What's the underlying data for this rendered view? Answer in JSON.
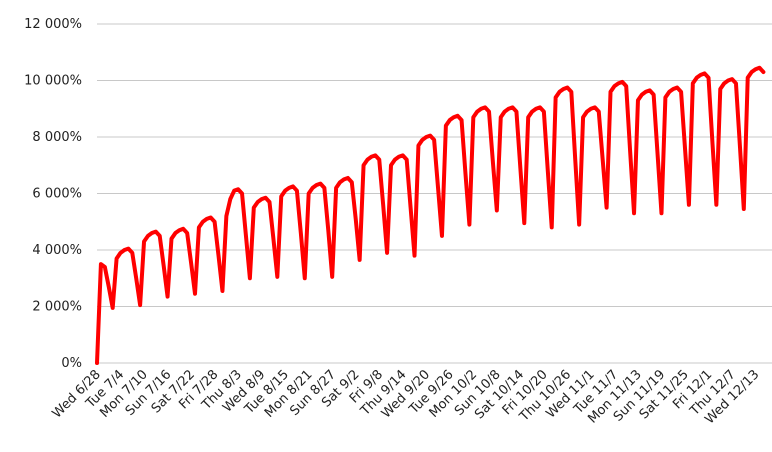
{
  "chart_data": {
    "type": "line",
    "color": "#ff0000",
    "grid": true,
    "ylim": [
      0,
      12000
    ],
    "yticks": [
      {
        "value": 0,
        "label": "0%"
      },
      {
        "value": 2000,
        "label": "2 000%"
      },
      {
        "value": 4000,
        "label": "4 000%"
      },
      {
        "value": 6000,
        "label": "6 000%"
      },
      {
        "value": 8000,
        "label": "8 000%"
      },
      {
        "value": 10000,
        "label": "10 000%"
      },
      {
        "value": 12000,
        "label": "12 000%"
      }
    ],
    "categories": [
      "Wed 6/28",
      null,
      null,
      null,
      null,
      null,
      "Tue 7/4",
      null,
      null,
      null,
      null,
      null,
      "Mon 7/10",
      null,
      null,
      null,
      null,
      null,
      "Sun 7/16",
      null,
      null,
      null,
      null,
      null,
      "Sat 7/22",
      null,
      null,
      null,
      null,
      null,
      "Fri 7/28",
      null,
      null,
      null,
      null,
      null,
      "Thu 8/3",
      null,
      null,
      null,
      null,
      null,
      "Wed 8/9",
      null,
      null,
      null,
      null,
      null,
      "Tue 8/15",
      null,
      null,
      null,
      null,
      null,
      "Mon 8/21",
      null,
      null,
      null,
      null,
      null,
      "Sun 8/27",
      null,
      null,
      null,
      null,
      null,
      "Sat 9/2",
      null,
      null,
      null,
      null,
      null,
      "Fri 9/8",
      null,
      null,
      null,
      null,
      null,
      "Thu 9/14",
      null,
      null,
      null,
      null,
      null,
      "Wed 9/20",
      null,
      null,
      null,
      null,
      null,
      "Tue 9/26",
      null,
      null,
      null,
      null,
      null,
      "Mon 10/2",
      null,
      null,
      null,
      null,
      null,
      "Sun 10/8",
      null,
      null,
      null,
      null,
      null,
      "Sat 10/14",
      null,
      null,
      null,
      null,
      null,
      "Fri 10/20",
      null,
      null,
      null,
      null,
      null,
      "Thu 10/26",
      null,
      null,
      null,
      null,
      null,
      "Wed 11/1",
      null,
      null,
      null,
      null,
      null,
      "Tue 11/7",
      null,
      null,
      null,
      null,
      null,
      "Mon 11/13",
      null,
      null,
      null,
      null,
      null,
      "Sun 11/19",
      null,
      null,
      null,
      null,
      null,
      "Sat 11/25",
      null,
      null,
      null,
      null,
      null,
      "Fri 12/1",
      null,
      null,
      null,
      null,
      null,
      "Thu 12/7",
      null,
      null,
      null,
      null,
      null,
      "Wed 12/13",
      null,
      null
    ],
    "values": [
      0,
      3500,
      3400,
      2700,
      1950,
      3700,
      3900,
      4000,
      4050,
      3900,
      3000,
      2050,
      4300,
      4500,
      4600,
      4650,
      4500,
      3450,
      2350,
      4400,
      4600,
      4700,
      4750,
      4600,
      3550,
      2450,
      4800,
      5000,
      5100,
      5150,
      5000,
      3800,
      2550,
      5200,
      5800,
      6100,
      6150,
      6000,
      4500,
      3000,
      5500,
      5700,
      5800,
      5850,
      5700,
      4400,
      3050,
      5900,
      6100,
      6200,
      6250,
      6100,
      4600,
      3000,
      6000,
      6200,
      6300,
      6350,
      6200,
      4700,
      3050,
      6200,
      6400,
      6500,
      6550,
      6400,
      5100,
      3650,
      7000,
      7200,
      7300,
      7350,
      7200,
      5600,
      3900,
      7000,
      7200,
      7300,
      7350,
      7200,
      5500,
      3800,
      7700,
      7900,
      8000,
      8050,
      7900,
      6200,
      4500,
      8400,
      8600,
      8700,
      8750,
      8600,
      6700,
      4900,
      8700,
      8900,
      9000,
      9050,
      8900,
      7100,
      5400,
      8700,
      8900,
      9000,
      9050,
      8900,
      6900,
      4950,
      8700,
      8900,
      9000,
      9050,
      8900,
      6800,
      4800,
      9400,
      9600,
      9700,
      9750,
      9600,
      7200,
      4900,
      8700,
      8900,
      9000,
      9050,
      8900,
      7200,
      5500,
      9600,
      9800,
      9900,
      9950,
      9800,
      7500,
      5300,
      9300,
      9500,
      9600,
      9650,
      9500,
      7400,
      5300,
      9400,
      9600,
      9700,
      9750,
      9600,
      7600,
      5600,
      9900,
      10100,
      10200,
      10250,
      10100,
      7800,
      5600,
      9700,
      9900,
      10000,
      10050,
      9900,
      7700,
      5450,
      10100,
      10300,
      10400,
      10450,
      10300
    ]
  }
}
